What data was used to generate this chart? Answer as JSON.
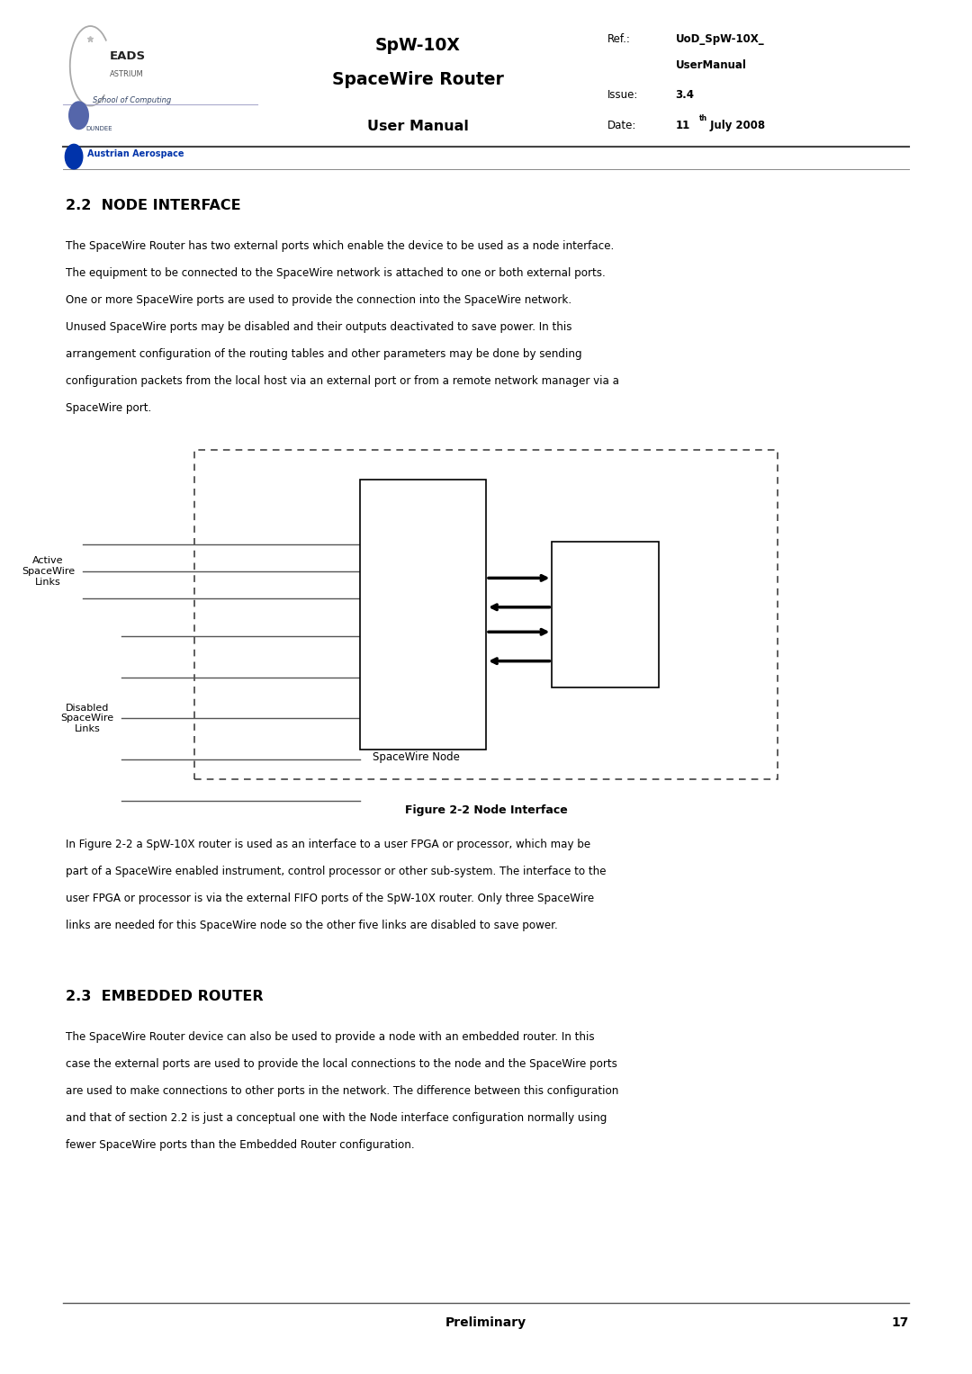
{
  "page_width": 10.8,
  "page_height": 15.27,
  "bg_color": "#ffffff",
  "header": {
    "title_line1": "SpW-10X",
    "title_line2": "SpaceWire Router",
    "title_line3": "User Manual",
    "ref_label": "Ref.:",
    "ref_value": "UoD_SpW-10X_",
    "ref_value2": "UserManual",
    "issue_label": "Issue:",
    "issue_value": "3.4",
    "date_label": "Date:",
    "date_value": "11",
    "date_sup": "th",
    "date_rest": " July 2008"
  },
  "section_22_title": "2.2  NODE INTERFACE",
  "section_22_body_lines": [
    "The SpaceWire Router has two external ports which enable the device to be used as a node interface.",
    "The equipment to be connected to the SpaceWire network is attached to one or both external ports.",
    "One or more SpaceWire ports are used to provide the connection into the SpaceWire network.",
    "Unused SpaceWire ports may be disabled and their outputs deactivated to save power. In this",
    "arrangement configuration of the routing tables and other parameters may be done by sending",
    "configuration packets from the local host via an external port or from a remote network manager via a",
    "SpaceWire port."
  ],
  "figure_caption": "Figure 2-2 Node Interface",
  "para_after_fig_lines": [
    "In Figure 2-2 a SpW-10X router is used as an interface to a user FPGA or processor, which may be",
    "part of a SpaceWire enabled instrument, control processor or other sub-system. The interface to the",
    "user FPGA or processor is via the external FIFO ports of the SpW-10X router. Only three SpaceWire",
    "links are needed for this SpaceWire node so the other five links are disabled to save power."
  ],
  "section_23_title": "2.3  EMBEDDED ROUTER",
  "section_23_body_lines": [
    "The SpaceWire Router device can also be used to provide a node with an embedded router. In this",
    "case the external ports are used to provide the local connections to the node and the SpaceWire ports",
    "are used to make connections to other ports in the network. The difference between this configuration",
    "and that of section 2.2 is just a conceptual one with the Node interface configuration normally using",
    "fewer SpaceWire ports than the Embedded Router configuration."
  ],
  "footer_text": "Preliminary",
  "footer_page": "17",
  "text_color": "#000000"
}
